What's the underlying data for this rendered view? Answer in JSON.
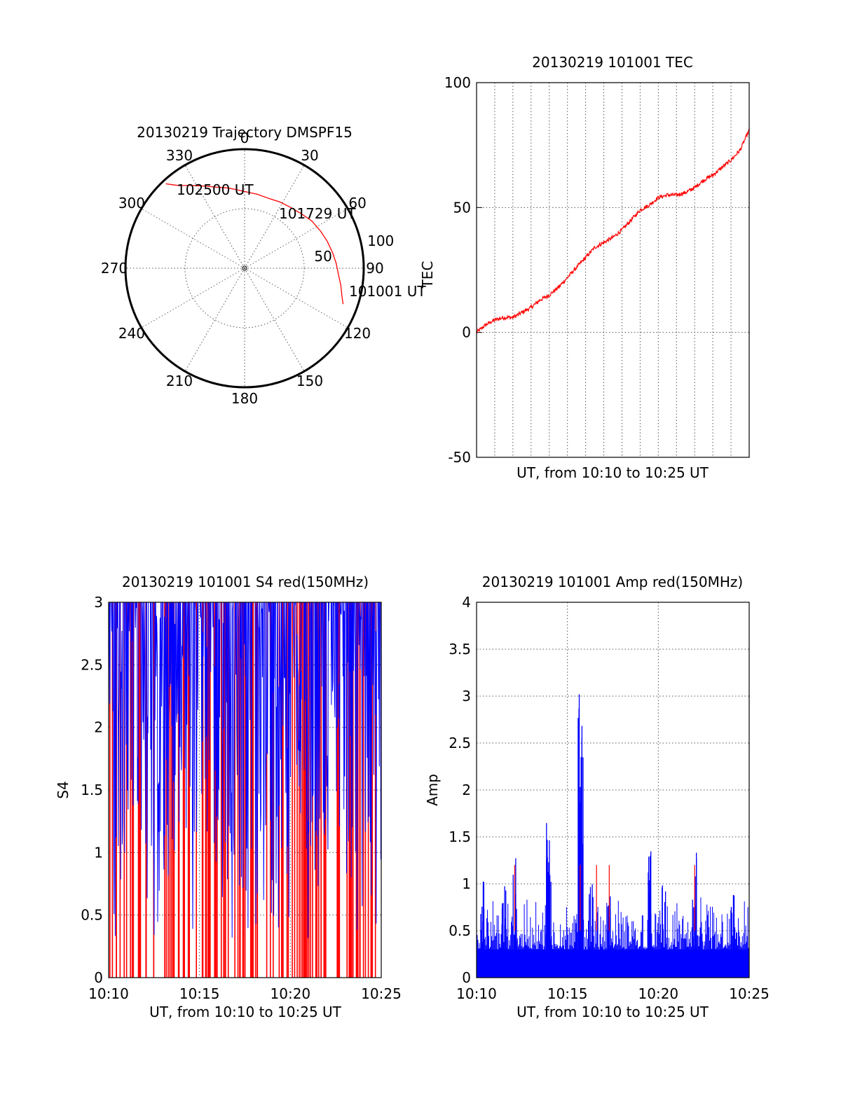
{
  "chart_data": [
    {
      "id": "trajectory",
      "type": "polar",
      "title": "20130219 Trajectory DMSPF15",
      "azimuth_labels": [
        "0",
        "30",
        "60",
        "90",
        "120",
        "150",
        "180",
        "210",
        "240",
        "270",
        "300",
        "330"
      ],
      "radius_labels": [
        "50",
        "100"
      ],
      "rmax": 100,
      "grid": true,
      "track_color": "#ff0000",
      "track": {
        "az": [
          110,
          106,
          100,
          94,
          87,
          80,
          72,
          64,
          55,
          46,
          37,
          28,
          19,
          10,
          2,
          355,
          348,
          341,
          335,
          330,
          326,
          322,
          319,
          317
        ],
        "r": [
          88,
          85,
          82,
          79,
          77,
          75,
          73,
          71,
          69,
          66,
          64,
          63,
          62,
          63,
          64,
          66,
          69,
          72,
          76,
          80,
          84,
          88,
          93,
          97
        ]
      },
      "annotations": [
        "102500 UT",
        "101729 UT",
        "101001 UT"
      ]
    },
    {
      "id": "tec",
      "type": "line",
      "title": "20130219 101001 TEC",
      "xlabel": "UT, from 10:10 to 10:25 UT",
      "ylabel": "TEC",
      "ylim": [
        -50,
        100
      ],
      "xlim": [
        0,
        15
      ],
      "yticks": [
        "100",
        "50",
        "0",
        "-50"
      ],
      "grid": true,
      "series": [
        {
          "color": "#ff0000",
          "x": [
            0,
            0.5,
            1,
            1.5,
            2,
            2.5,
            3,
            3.5,
            4,
            4.5,
            5,
            5.5,
            6,
            6.5,
            7,
            7.5,
            8,
            8.5,
            9,
            9.5,
            10,
            10.5,
            11,
            11.5,
            12,
            12.5,
            13,
            13.5,
            14,
            14.5,
            15
          ],
          "y": [
            0,
            3,
            5,
            6,
            6,
            8,
            10,
            13,
            15,
            18,
            22,
            26,
            30,
            34,
            36,
            38,
            41,
            45,
            49,
            51,
            54,
            55,
            55,
            56,
            58,
            61,
            63,
            66,
            69,
            73,
            81
          ]
        }
      ]
    },
    {
      "id": "s4",
      "type": "bar",
      "title": "20130219 101001 S4 red(150MHz)",
      "xlabel": "UT, from 10:10 to 10:25 UT",
      "ylabel": "S4",
      "ylim": [
        0,
        3
      ],
      "xticks": [
        "10:10",
        "10:15",
        "10:20",
        "10:25"
      ],
      "yticks": [
        "3",
        "2.5",
        "2",
        "1.5",
        "1",
        "0.5",
        "0"
      ],
      "grid": true,
      "series": [
        {
          "name": "",
          "color": "#ff0000"
        },
        {
          "name": "",
          "color": "#0000ff"
        }
      ]
    },
    {
      "id": "amp",
      "type": "bar",
      "title": "20130219 101001 Amp red(150MHz)",
      "xlabel": "UT, from 10:10 to 10:25 UT",
      "ylabel": "Amp",
      "ylim": [
        0,
        4
      ],
      "xticks": [
        "10:10",
        "10:15",
        "10:20",
        "10:25"
      ],
      "yticks": [
        "4",
        "3.5",
        "3",
        "2.5",
        "2",
        "1.5",
        "1",
        "0.5",
        "0"
      ],
      "grid": true,
      "series": [
        {
          "name": "",
          "color": "#0000ff"
        },
        {
          "name": "",
          "color": "#ff0000"
        }
      ],
      "peaks": [
        {
          "t": 0.3,
          "v": 1.1
        },
        {
          "t": 1.5,
          "v": 1.0
        },
        {
          "t": 2.1,
          "v": 1.3
        },
        {
          "t": 3.9,
          "v": 1.75
        },
        {
          "t": 4.0,
          "v": 1.5
        },
        {
          "t": 5.6,
          "v": 3.1
        },
        {
          "t": 5.8,
          "v": 2.8
        },
        {
          "t": 6.3,
          "v": 1.0
        },
        {
          "t": 7.3,
          "v": 1.1
        },
        {
          "t": 9.5,
          "v": 1.75
        },
        {
          "t": 10.3,
          "v": 1.0
        },
        {
          "t": 12.0,
          "v": 1.35
        },
        {
          "t": 14.1,
          "v": 0.9
        }
      ]
    }
  ]
}
